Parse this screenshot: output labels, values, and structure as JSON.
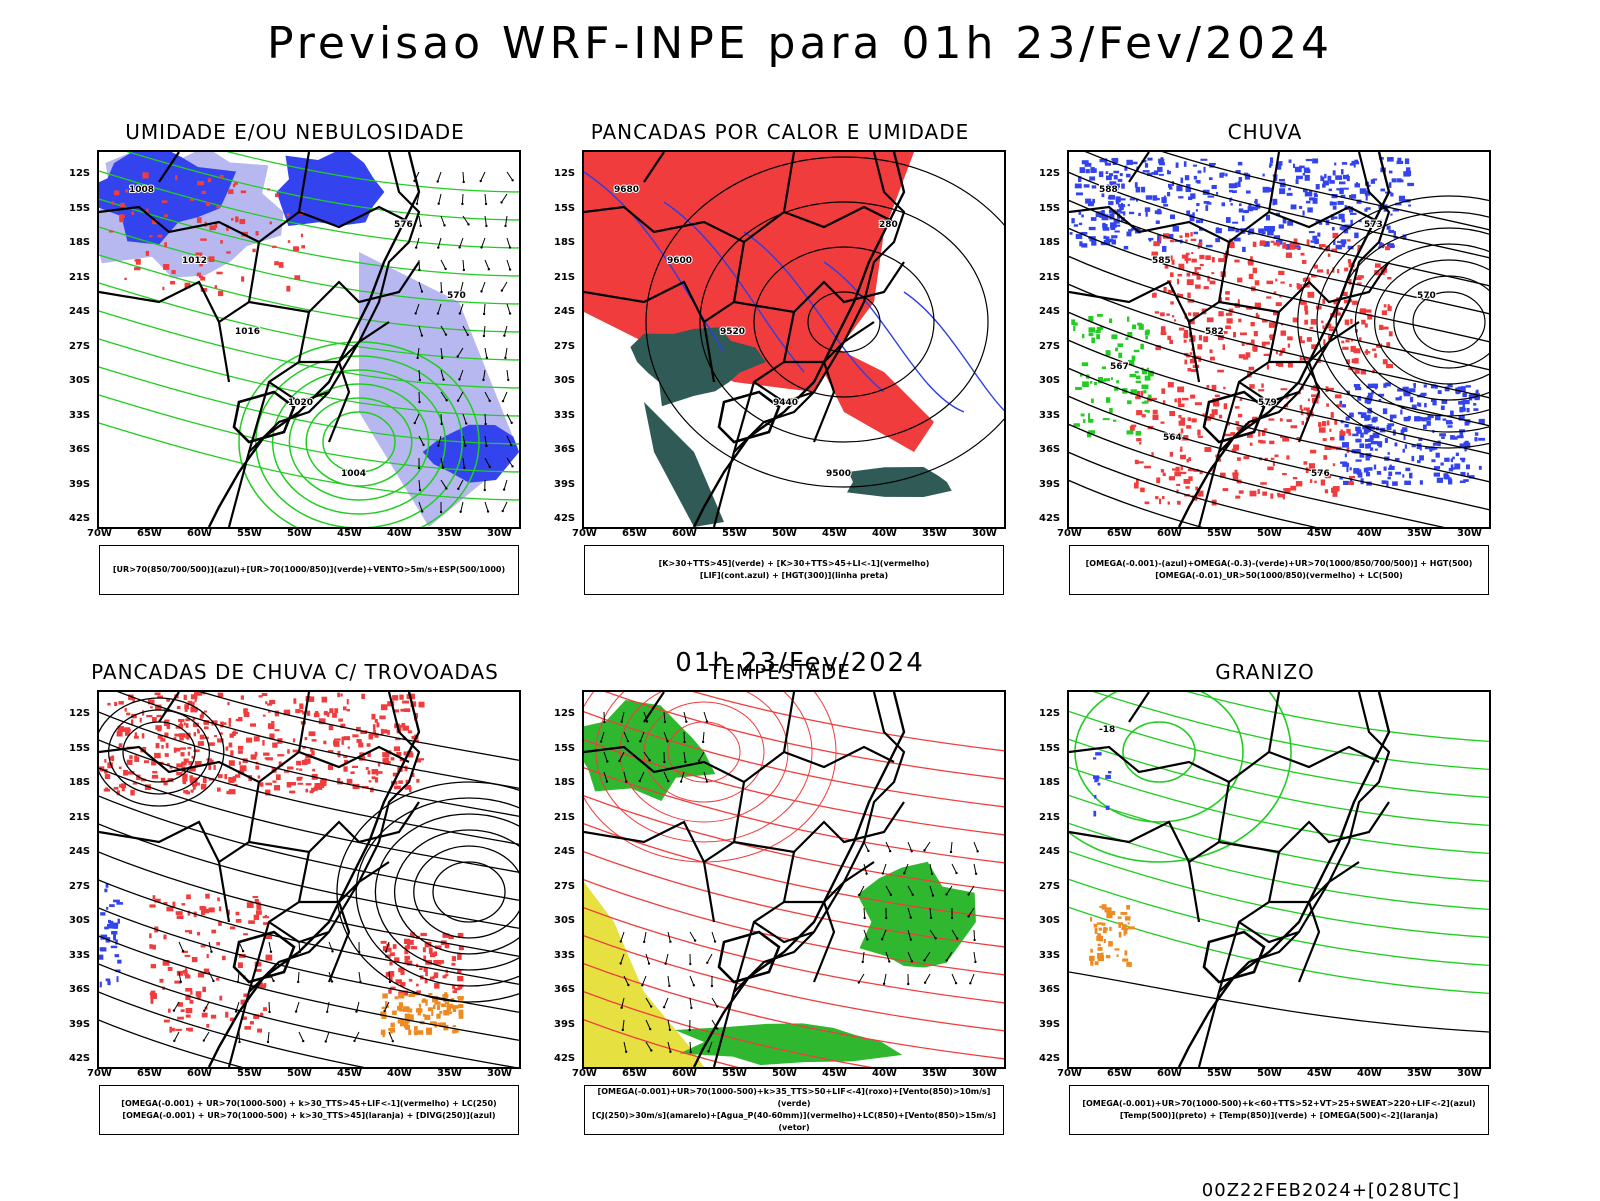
{
  "title": "Previsao WRF-INPE  para 01h 23/Fev/2024",
  "subtitle_time": "01h 23/Fev/2024",
  "footer": "00Z22FEB2024+[028UTC]",
  "axes": {
    "lat_labels": [
      "12S",
      "15S",
      "18S",
      "21S",
      "24S",
      "27S",
      "30S",
      "33S",
      "36S",
      "39S",
      "42S"
    ],
    "lon_labels": [
      "70W",
      "65W",
      "60W",
      "55W",
      "50W",
      "45W",
      "40W",
      "35W",
      "30W"
    ]
  },
  "panels": [
    {
      "title": "UMIDADE E/OU NEBULOSIDADE",
      "legend": [
        "[UR>70(850/700/500)](azul)+[UR>70(1000/850)](verde)+VENTO>5m/s+ESP(500/1000)"
      ],
      "contour_labels": [
        "1008",
        "1012",
        "1016",
        "1020",
        "1004",
        "576",
        "570"
      ]
    },
    {
      "title": "PANCADAS POR CALOR E UMIDADE",
      "legend": [
        "[K>30+TTS>45](verde) + [K>30+TTS>45+LI<-1](vermelho)",
        "[LIF](cont.azul) + [HGT(300)](linha preta)"
      ],
      "contour_labels": [
        "9680",
        "9600",
        "9520",
        "9440",
        "9500",
        "280"
      ]
    },
    {
      "title": "CHUVA",
      "legend": [
        "[OMEGA(-0.001)-(azul)+OMEGA(-0.3)-(verde)+UR>70(1000/850/700/500)] + HGT(500)",
        "[OMEGA(-0.01)_UR>50(1000/850)(vermelho) + LC(500)"
      ],
      "contour_labels": [
        "588",
        "585",
        "582",
        "579",
        "576",
        "573",
        "570",
        "567",
        "564"
      ]
    },
    {
      "title": "PANCADAS DE CHUVA C/ TROVOADAS",
      "legend": [
        "[OMEGA(-0.001) + UR>70(1000-500) + k>30_TTS>45+LIF<-1](vermelho) + LC(250)",
        "[OMEGA(-0.001) + UR>70(1000-500) + k>30_TTS>45](laranja) + [DIVG(250)](azul)"
      ],
      "contour_labels": []
    },
    {
      "title": "TEMPESTADE",
      "legend": [
        "[OMEGA(-0.001)+UR>70(1000-500)+k>35_TTS>50+LIF<-4](roxo)+[Vento(850)>10m/s](verde)",
        "[CJ(250)>30m/s](amarelo)+[Agua_P(40-60mm)](vermelho)+LC(850)+[Vento(850)>15m/s](vetor)"
      ],
      "contour_labels": []
    },
    {
      "title": "GRANIZO",
      "legend": [
        "[OMEGA(-0.001)+UR>70(1000-500)+k<60+TTS>52+VT>25+SWEAT>220+LIF<-2](azul)",
        "[Temp(500)](preto) + [Temp(850)](verde) + [OMEGA(500)<-2](laranja)"
      ],
      "contour_labels": [
        "-18"
      ]
    }
  ],
  "colors": {
    "red": "#f03c3c",
    "green": "#22cc22",
    "blue": "#3344ee",
    "lavender": "#b8b8f0",
    "teal": "#2f5a55",
    "yellow": "#e6e040",
    "orange": "#ee8a22"
  }
}
